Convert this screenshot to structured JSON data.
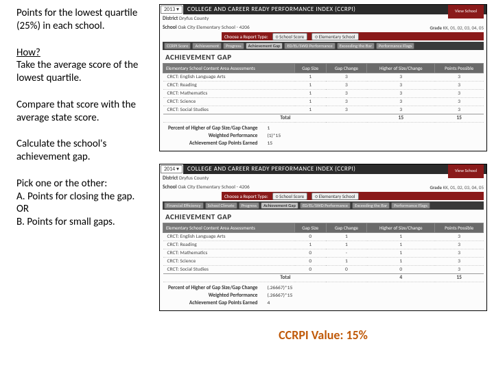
{
  "left": {
    "p1": "Points for the lowest quartile (25%) in each school.",
    "how_label": "How?",
    "p2": "Take the average score of the lowest quartile.",
    "p3": "Compare that score with the average state score.",
    "p4": "Calculate the school's achievement gap.",
    "p5": "Pick one or the other:\nA. Points for closing the gap.\nOR\nB. Points for small gaps."
  },
  "panels": [
    {
      "year": "2013",
      "title": "College and Career Ready Performance Index (CCRPI)",
      "district": "Dryfus County",
      "school": "Oak City Elementary School - 4206",
      "grade_codes": "KK, 01, 02, 03, 04, 05",
      "choose_label": "Choose a Report Type:",
      "choose_opts": [
        "School Score",
        "Elementary School"
      ],
      "tabs": [
        "CCRPI Score",
        "Achievement",
        "Progress",
        "Achievement Gap",
        "ED/EL/SWD Performance",
        "Exceeding the Bar",
        "Performance Flags"
      ],
      "tab_selected": 3,
      "section": "Achievement Gap",
      "thead": [
        "Elementary School Content Area Assessments",
        "Gap Size",
        "Gap Change",
        "Higher of Size/Change",
        "Points Possible"
      ],
      "rows": [
        [
          "CRCT: English Language Arts",
          "1",
          "3",
          "3",
          "3"
        ],
        [
          "CRCT: Reading",
          "1",
          "3",
          "3",
          "3"
        ],
        [
          "CRCT: Mathematics",
          "1",
          "3",
          "3",
          "3"
        ],
        [
          "CRCT: Science",
          "1",
          "3",
          "3",
          "3"
        ],
        [
          "CRCT: Social Studies",
          "1",
          "3",
          "3",
          "3"
        ]
      ],
      "total": [
        "Total",
        "",
        "",
        "15",
        "15"
      ],
      "s1": [
        "Percent of Higher of Gap Size/Gap Change",
        "1"
      ],
      "s2": [
        "Weighted Performance",
        "(1)*15"
      ],
      "s3": [
        "Achievement Gap Points Earned",
        "15"
      ]
    },
    {
      "year": "2014",
      "title": "College and Career Ready Performance Index (CCRPI)",
      "district": "Dryfus County",
      "school": "Oak City Elementary School - 4206",
      "grade_codes": "KK, 01, 02, 03, 04, 05",
      "choose_label": "Choose a Report Type:",
      "choose_opts": [
        "School Score",
        "Elementary School"
      ],
      "tabs": [
        "Financial Efficiency",
        "School Climate",
        "Progress",
        "Achievement Gap",
        "ED/EL/SWD Performance",
        "Exceeding the Bar",
        "Performance Flags"
      ],
      "tab_selected": 3,
      "section": "Achievement Gap",
      "thead": [
        "Elementary School Content Area Assessments",
        "Gap Size",
        "Gap Change",
        "Higher of Size/Change",
        "Points Possible"
      ],
      "rows": [
        [
          "CRCT: English Language Arts",
          "0",
          "1",
          "1",
          "3"
        ],
        [
          "CRCT: Reading",
          "1",
          "1",
          "1",
          "3"
        ],
        [
          "CRCT: Mathematics",
          "0",
          "·",
          "1",
          "3"
        ],
        [
          "CRCT: Science",
          "0",
          "1",
          "1",
          "3"
        ],
        [
          "CRCT: Social Studies",
          "0",
          "0",
          "0",
          "3"
        ]
      ],
      "total": [
        "Total",
        "",
        "",
        "4",
        "15"
      ],
      "s1": [
        "Percent of Higher of Gap Size/Gap Change",
        "(.26667)*15"
      ],
      "s2": [
        "Weighted Performance",
        "(.26667)*15"
      ],
      "s3": [
        "Achievement Gap Points Earned",
        "4"
      ]
    }
  ],
  "school_btn": "View School",
  "ccrpi_value": "CCRPI Value:  15%",
  "colors": {
    "header_dark": "#2b2b2b",
    "redbar": "#8a1a1a",
    "th_bg": "#6a6a6a",
    "value_text": "#c05a0a"
  }
}
